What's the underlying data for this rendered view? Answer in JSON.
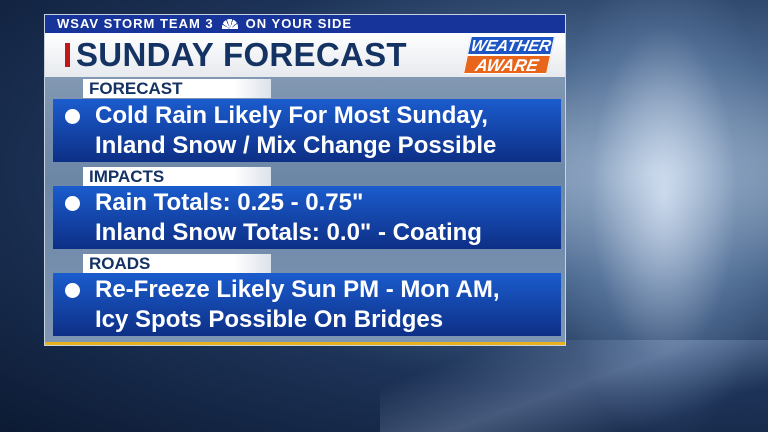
{
  "header": {
    "station": "WSAV STORM TEAM 3",
    "network_logo": "nbc-peacock-icon",
    "tagline": "ON YOUR SIDE",
    "title": "SUNDAY FORECAST",
    "badge": {
      "line1": "WEATHER",
      "line2": "AWARE"
    }
  },
  "sections": [
    {
      "label": "FORECAST",
      "lines": [
        "Cold Rain Likely For Most Sunday,",
        "Inland Snow / Mix Change Possible"
      ]
    },
    {
      "label": "IMPACTS",
      "lines": [
        "Rain Totals: 0.25 - 0.75\"",
        "Inland Snow Totals: 0.0\" - Coating"
      ]
    },
    {
      "label": "ROADS",
      "lines": [
        "Re-Freeze Likely Sun PM - Mon AM,",
        "Icy Spots Possible On Bridges"
      ]
    }
  ],
  "colors": {
    "topbar": "#16349a",
    "title": "#143363",
    "band": "#1b5ccd",
    "accent_red": "#c01818",
    "badge_orange": "#e8661c",
    "gold": "#e7b21e"
  }
}
